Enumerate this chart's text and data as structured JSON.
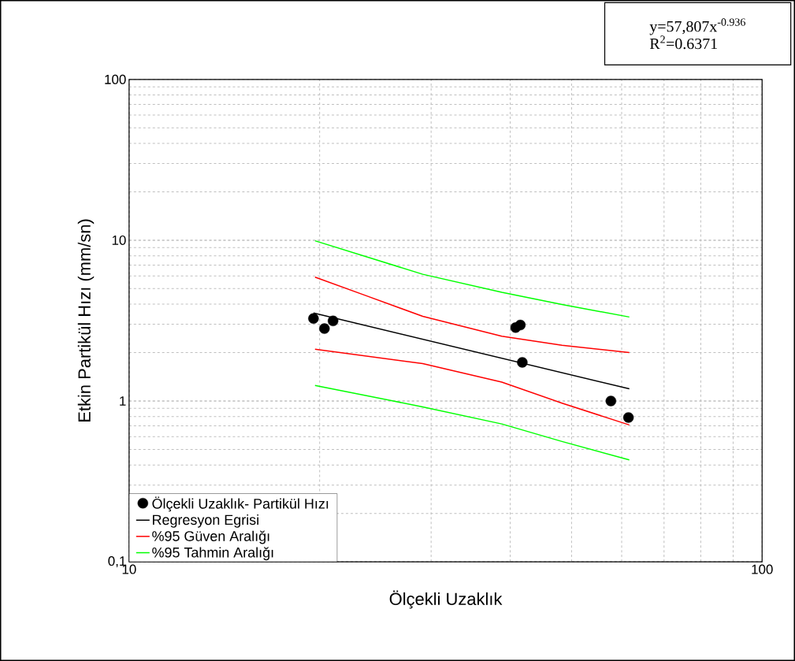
{
  "chart_data": {
    "type": "scatter",
    "xlabel": "Ölçekli Uzaklık",
    "ylabel": "Etkin Partikül Hızı (mm/sn)",
    "log": "xy",
    "grid": true,
    "legend": "bottom left",
    "xlim": [
      10,
      100
    ],
    "ylim": [
      0.1,
      100
    ],
    "xticks": [
      10,
      100
    ],
    "yticks": [
      {
        "value": 0.1,
        "label": "0,1"
      },
      1,
      10,
      100
    ],
    "annotations": [
      "y=57,807x$^{-0.936}$",
      "R$^{2}$=0.6371"
    ],
    "series": [
      {
        "name": "Ölçekli Uzaklık- Partikül Hızı",
        "marker": "circle",
        "color": "#000000",
        "x": [
          19.56,
          20.35,
          21.0,
          40.8,
          41.5,
          41.8,
          57.7,
          61.5
        ],
        "values": [
          3.26,
          2.82,
          3.15,
          2.86,
          2.97,
          1.74,
          1.0,
          0.79
        ]
      },
      {
        "name": "Regresyon Egrisi",
        "type": "line",
        "marker": "none",
        "color": "#000000",
        "x": [
          19.56,
          61.7
        ],
        "values": [
          3.53,
          1.19
        ]
      },
      {
        "name": "%95 Güven Aralığı",
        "type": "line",
        "marker": "none",
        "color": "#ff0000",
        "x": [
          19.67,
          23.6,
          29.1,
          38.8,
          48.3,
          61.7
        ],
        "values": [
          5.9,
          4.54,
          3.36,
          2.53,
          2.22,
          2.0
        ]
      },
      {
        "type": "line",
        "marker": "none",
        "color": "#ff0000",
        "x": [
          19.67,
          29.1,
          38.8,
          48.3,
          61.7
        ],
        "values": [
          2.1,
          1.71,
          1.31,
          0.97,
          0.71
        ]
      },
      {
        "name": "%95 Tahmin Aralığı",
        "type": "line",
        "marker": "none",
        "color": "#00ff00",
        "x": [
          19.67,
          29.1,
          38.8,
          48.3,
          61.7
        ],
        "values": [
          9.92,
          6.14,
          4.74,
          3.98,
          3.33
        ]
      },
      {
        "type": "line",
        "marker": "none",
        "color": "#00ff00",
        "x": [
          19.67,
          29.1,
          38.8,
          48.3,
          61.7
        ],
        "values": [
          1.25,
          0.92,
          0.72,
          0.56,
          0.43
        ]
      }
    ]
  }
}
